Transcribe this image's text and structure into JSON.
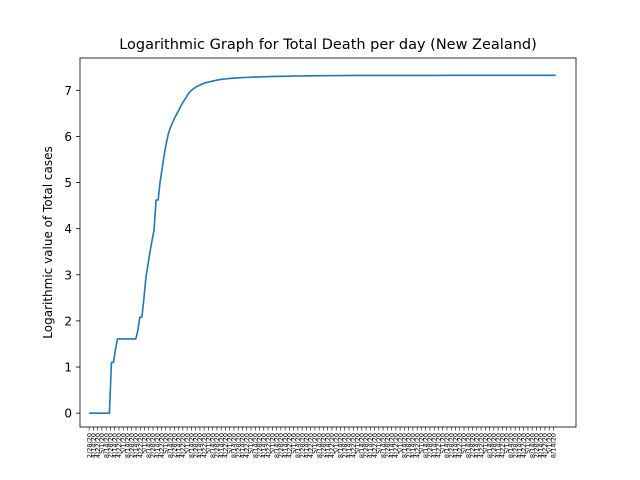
{
  "chart_data": {
    "type": "line",
    "title": "Logarithmic Graph for Total Death per day (New Zealand)",
    "xlabel": "",
    "ylabel": "Logarithmic value of Total cases",
    "ylim": [
      -0.3,
      7.7
    ],
    "yticks": [
      0,
      1,
      2,
      3,
      4,
      5,
      6,
      7
    ],
    "grid": false,
    "legend": "none",
    "line_color": "#1f77b4",
    "series": [
      {
        "x": [
          0,
          5,
          10,
          11,
          12,
          13,
          14,
          15,
          16,
          17,
          18,
          19,
          20,
          21,
          22,
          23,
          24,
          25,
          26,
          27,
          28,
          29,
          30,
          31,
          32,
          33,
          34,
          35,
          36,
          37,
          38,
          39,
          40,
          41,
          42,
          43,
          44,
          45,
          46,
          47,
          48,
          49,
          50,
          51,
          52,
          53,
          54,
          55,
          56,
          57,
          58,
          59,
          60,
          61,
          62,
          63,
          64,
          65,
          66,
          67,
          68,
          69,
          70,
          72,
          74,
          76,
          78,
          80,
          82,
          84,
          86,
          88,
          90,
          92,
          94,
          96,
          98,
          100,
          103,
          106,
          110,
          115,
          120,
          125,
          130,
          140,
          150,
          160,
          170,
          180,
          190,
          200,
          230
        ],
        "values": [
          0,
          0,
          0,
          1.1,
          1.1,
          1.39,
          1.61,
          1.61,
          1.61,
          1.61,
          1.61,
          1.61,
          1.61,
          1.61,
          1.61,
          1.61,
          1.79,
          2.08,
          2.08,
          2.48,
          2.94,
          3.22,
          3.5,
          3.74,
          3.97,
          4.62,
          4.62,
          5.02,
          5.3,
          5.6,
          5.84,
          6.05,
          6.18,
          6.29,
          6.39,
          6.47,
          6.55,
          6.64,
          6.72,
          6.79,
          6.86,
          6.93,
          6.98,
          7.02,
          7.05,
          7.08,
          7.1,
          7.12,
          7.14,
          7.16,
          7.17,
          7.18,
          7.19,
          7.2,
          7.21,
          7.22,
          7.23,
          7.235,
          7.24,
          7.245,
          7.25,
          7.255,
          7.26,
          7.265,
          7.27,
          7.275,
          7.28,
          7.285,
          7.29,
          7.29,
          7.295,
          7.295,
          7.3,
          7.3,
          7.302,
          7.304,
          7.306,
          7.308,
          7.31,
          7.312,
          7.314,
          7.316,
          7.318,
          7.32,
          7.321,
          7.322,
          7.322,
          7.323,
          7.323,
          7.324,
          7.324,
          7.325,
          7.325
        ]
      }
    ],
    "xlim": [
      -4.5,
      240
    ],
    "x_tick_spacing": 2.1,
    "x_tick_labels": [
      "2/28/20",
      "4/14/20",
      "4/22/20",
      "5/1/20",
      "8/14/20"
    ]
  }
}
